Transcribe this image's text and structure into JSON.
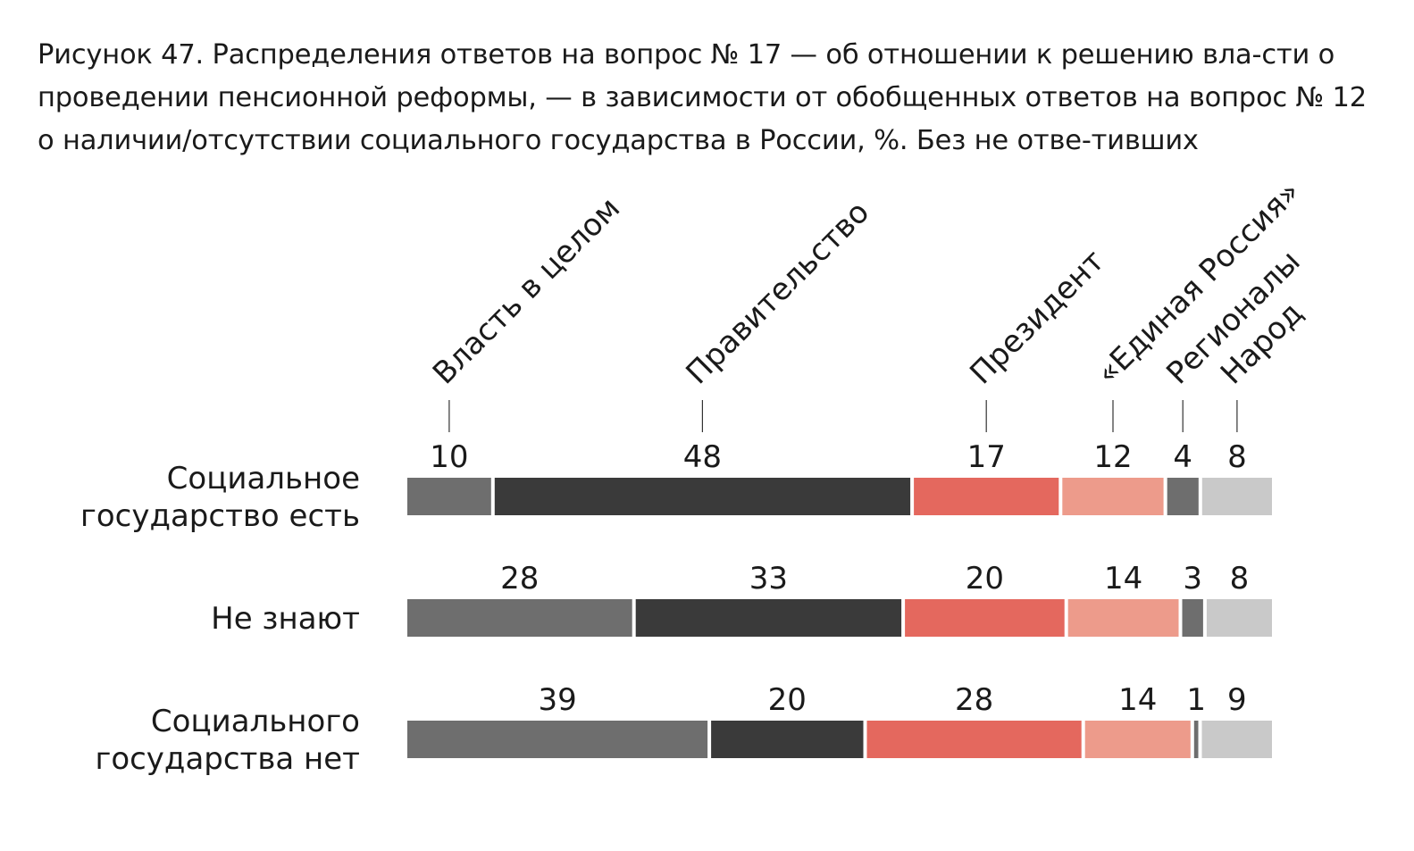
{
  "title": "Рисунок 47. Распределения ответов на вопрос № 17 — об отношении к решению вла-сти о проведении пенсионной реформы, — в зависимости от обобщенных ответов на вопрос № 12 о наличии/отсутствии социального государства в России, %. Без не отве-тивших",
  "chart_data": {
    "type": "bar",
    "orientation": "horizontal",
    "stacked": true,
    "unit": "%",
    "categories": [
      [
        "Социальное",
        "государство есть"
      ],
      [
        "Не знают"
      ],
      [
        "Социального",
        "государства нет"
      ]
    ],
    "series": [
      {
        "name": "Власть в целом",
        "color": "#6e6e6e",
        "values": [
          10,
          28,
          39
        ]
      },
      {
        "name": "Правительство",
        "color": "#3a3a3a",
        "values": [
          48,
          33,
          20
        ]
      },
      {
        "name": "Президент",
        "color": "#e4685e",
        "values": [
          17,
          20,
          28
        ]
      },
      {
        "name": "«Единая Россия»",
        "color": "#ed9b8b",
        "values": [
          12,
          14,
          14
        ]
      },
      {
        "name": "Регионалы",
        "color": "#6e6e6e",
        "values": [
          4,
          3,
          1
        ]
      },
      {
        "name": "Народ",
        "color": "#c9c9c9",
        "values": [
          8,
          8,
          9
        ]
      }
    ],
    "legend": "top, rotated labels above first bar",
    "grid": false
  }
}
